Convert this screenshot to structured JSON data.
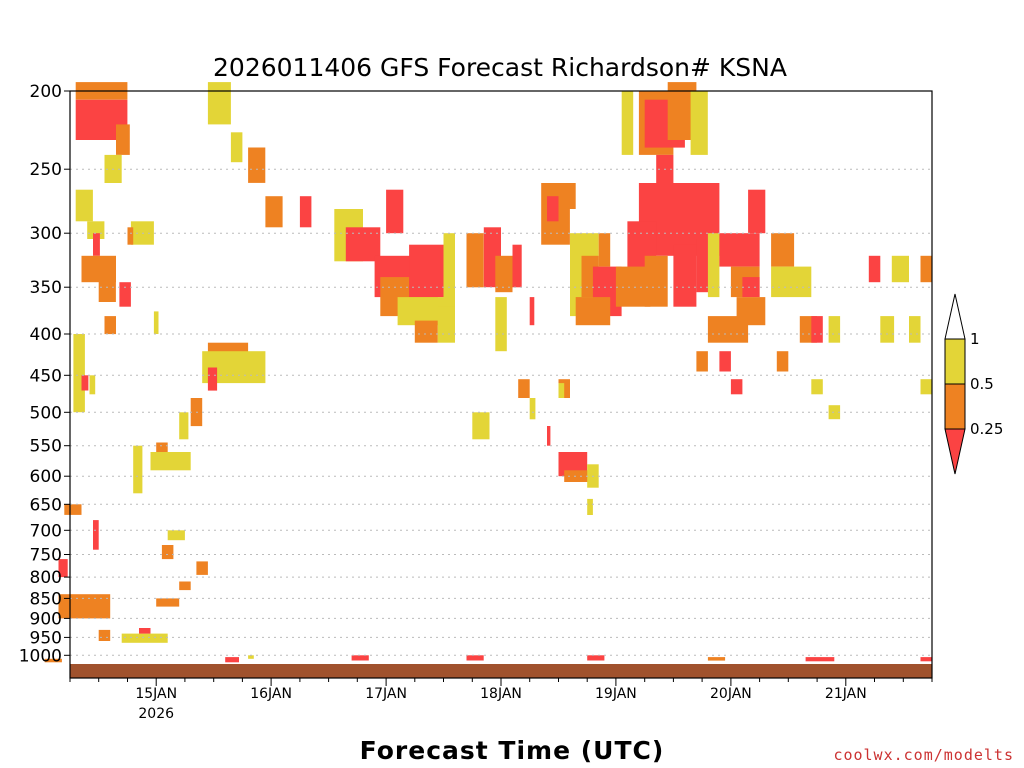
{
  "chart_data": {
    "type": "heatmap",
    "title": "2026011406 GFS Forecast Richardson# KSNA",
    "xlabel": "Forecast Time (UTC)",
    "ylabel": "",
    "x_ticks": [
      {
        "day": 1,
        "label": "15JAN",
        "sublabel": "2026"
      },
      {
        "day": 2,
        "label": "16JAN"
      },
      {
        "day": 3,
        "label": "17JAN"
      },
      {
        "day": 4,
        "label": "18JAN"
      },
      {
        "day": 5,
        "label": "19JAN"
      },
      {
        "day": 6,
        "label": "20JAN"
      },
      {
        "day": 7,
        "label": "21JAN"
      }
    ],
    "xlim_days": [
      0.25,
      7.75
    ],
    "y_ticks": [
      200,
      250,
      300,
      350,
      400,
      450,
      500,
      550,
      600,
      650,
      700,
      750,
      800,
      850,
      900,
      950,
      1000
    ],
    "ylim_hpa": [
      200,
      1025
    ],
    "legend": {
      "levels": [
        "1",
        "0.5",
        "0.25"
      ],
      "colors": {
        "gt1": "#ffffff",
        "lt1": "#e3d537",
        "lt05": "#ee8222",
        "lt025": "#fb4343"
      }
    },
    "colors": {
      "yellow": "#e3d537",
      "orange": "#ee8222",
      "red": "#fb4343",
      "ground": "#a0522d",
      "grid": "#bbbbbb"
    },
    "credit": "coolwx.com/modelts",
    "cells": [
      {
        "t": 0.3,
        "p": 205,
        "c": "red",
        "dt": 0.45,
        "dp": 25
      },
      {
        "t": 0.3,
        "p": 195,
        "c": "orange",
        "dt": 0.45,
        "dp": 10
      },
      {
        "t": 0.65,
        "p": 220,
        "c": "orange",
        "dt": 0.12,
        "dp": 20
      },
      {
        "t": 0.3,
        "p": 265,
        "c": "yellow",
        "dt": 0.15,
        "dp": 25
      },
      {
        "t": 0.55,
        "p": 240,
        "c": "yellow",
        "dt": 0.15,
        "dp": 20
      },
      {
        "t": 0.4,
        "p": 290,
        "c": "yellow",
        "dt": 0.15,
        "dp": 15
      },
      {
        "t": 0.45,
        "p": 300,
        "c": "red",
        "dt": 0.06,
        "dp": 20
      },
      {
        "t": 0.35,
        "p": 320,
        "c": "orange",
        "dt": 0.3,
        "dp": 25
      },
      {
        "t": 0.5,
        "p": 340,
        "c": "orange",
        "dt": 0.15,
        "dp": 25
      },
      {
        "t": 0.68,
        "p": 345,
        "c": "red",
        "dt": 0.1,
        "dp": 25
      },
      {
        "t": 0.55,
        "p": 380,
        "c": "orange",
        "dt": 0.1,
        "dp": 20
      },
      {
        "t": 0.78,
        "p": 290,
        "c": "yellow",
        "dt": 0.2,
        "dp": 20
      },
      {
        "t": 0.75,
        "p": 295,
        "c": "orange",
        "dt": 0.05,
        "dp": 15
      },
      {
        "t": 0.98,
        "p": 375,
        "c": "yellow",
        "dt": 0.04,
        "dp": 25
      },
      {
        "t": 0.28,
        "p": 400,
        "c": "yellow",
        "dt": 0.1,
        "dp": 100
      },
      {
        "t": 0.35,
        "p": 450,
        "c": "red",
        "dt": 0.06,
        "dp": 20
      },
      {
        "t": 0.42,
        "p": 450,
        "c": "yellow",
        "dt": 0.05,
        "dp": 25
      },
      {
        "t": 1.45,
        "p": 195,
        "c": "yellow",
        "dt": 0.2,
        "dp": 25
      },
      {
        "t": 1.65,
        "p": 225,
        "c": "yellow",
        "dt": 0.1,
        "dp": 20
      },
      {
        "t": 1.8,
        "p": 235,
        "c": "orange",
        "dt": 0.15,
        "dp": 25
      },
      {
        "t": 1.95,
        "p": 270,
        "c": "orange",
        "dt": 0.15,
        "dp": 25
      },
      {
        "t": 2.25,
        "p": 270,
        "c": "red",
        "dt": 0.1,
        "dp": 25
      },
      {
        "t": 1.45,
        "p": 410,
        "c": "orange",
        "dt": 0.35,
        "dp": 40
      },
      {
        "t": 1.4,
        "p": 420,
        "c": "yellow",
        "dt": 0.55,
        "dp": 40
      },
      {
        "t": 1.45,
        "p": 440,
        "c": "red",
        "dt": 0.08,
        "dp": 30
      },
      {
        "t": 1.3,
        "p": 480,
        "c": "orange",
        "dt": 0.1,
        "dp": 40
      },
      {
        "t": 1.2,
        "p": 500,
        "c": "yellow",
        "dt": 0.08,
        "dp": 40
      },
      {
        "t": 1.0,
        "p": 545,
        "c": "orange",
        "dt": 0.1,
        "dp": 25
      },
      {
        "t": 0.95,
        "p": 560,
        "c": "yellow",
        "dt": 0.35,
        "dp": 30
      },
      {
        "t": 0.8,
        "p": 550,
        "c": "yellow",
        "dt": 0.08,
        "dp": 80
      },
      {
        "t": 0.2,
        "p": 650,
        "c": "orange",
        "dt": 0.15,
        "dp": 20
      },
      {
        "t": 0.45,
        "p": 680,
        "c": "red",
        "dt": 0.05,
        "dp": 60
      },
      {
        "t": 0.15,
        "p": 760,
        "c": "red",
        "dt": 0.08,
        "dp": 40
      },
      {
        "t": 0.2,
        "p": 850,
        "c": "red",
        "dt": 0.35,
        "dp": 45
      },
      {
        "t": 0.15,
        "p": 840,
        "c": "orange",
        "dt": 0.45,
        "dp": 60
      },
      {
        "t": 0.5,
        "p": 930,
        "c": "orange",
        "dt": 0.1,
        "dp": 30
      },
      {
        "t": 0.7,
        "p": 940,
        "c": "yellow",
        "dt": 0.4,
        "dp": 25
      },
      {
        "t": 0.85,
        "p": 925,
        "c": "red",
        "dt": 0.1,
        "dp": 15
      },
      {
        "t": 1.0,
        "p": 850,
        "c": "orange",
        "dt": 0.2,
        "dp": 20
      },
      {
        "t": 1.2,
        "p": 810,
        "c": "orange",
        "dt": 0.1,
        "dp": 20
      },
      {
        "t": 1.05,
        "p": 730,
        "c": "orange",
        "dt": 0.1,
        "dp": 30
      },
      {
        "t": 1.1,
        "p": 700,
        "c": "yellow",
        "dt": 0.15,
        "dp": 20
      },
      {
        "t": 1.35,
        "p": 765,
        "c": "orange",
        "dt": 0.1,
        "dp": 30
      },
      {
        "t": 2.55,
        "p": 280,
        "c": "yellow",
        "dt": 0.25,
        "dp": 45
      },
      {
        "t": 2.65,
        "p": 295,
        "c": "red",
        "dt": 0.3,
        "dp": 30
      },
      {
        "t": 3.0,
        "p": 265,
        "c": "red",
        "dt": 0.15,
        "dp": 35
      },
      {
        "t": 2.9,
        "p": 320,
        "c": "red",
        "dt": 0.6,
        "dp": 40
      },
      {
        "t": 2.95,
        "p": 340,
        "c": "orange",
        "dt": 0.5,
        "dp": 40
      },
      {
        "t": 3.2,
        "p": 310,
        "c": "red",
        "dt": 0.35,
        "dp": 50
      },
      {
        "t": 3.1,
        "p": 360,
        "c": "yellow",
        "dt": 0.45,
        "dp": 30
      },
      {
        "t": 3.5,
        "p": 300,
        "c": "yellow",
        "dt": 0.1,
        "dp": 80
      },
      {
        "t": 3.25,
        "p": 385,
        "c": "orange",
        "dt": 0.2,
        "dp": 25
      },
      {
        "t": 3.45,
        "p": 370,
        "c": "yellow",
        "dt": 0.15,
        "dp": 40
      },
      {
        "t": 3.7,
        "p": 300,
        "c": "orange",
        "dt": 0.15,
        "dp": 50
      },
      {
        "t": 3.85,
        "p": 295,
        "c": "red",
        "dt": 0.15,
        "dp": 55
      },
      {
        "t": 3.95,
        "p": 320,
        "c": "orange",
        "dt": 0.15,
        "dp": 35
      },
      {
        "t": 4.1,
        "p": 310,
        "c": "red",
        "dt": 0.08,
        "dp": 40
      },
      {
        "t": 3.95,
        "p": 360,
        "c": "yellow",
        "dt": 0.1,
        "dp": 60
      },
      {
        "t": 4.25,
        "p": 360,
        "c": "red",
        "dt": 0.04,
        "dp": 30
      },
      {
        "t": 4.35,
        "p": 260,
        "c": "orange",
        "dt": 0.25,
        "dp": 50
      },
      {
        "t": 4.4,
        "p": 270,
        "c": "red",
        "dt": 0.1,
        "dp": 20
      },
      {
        "t": 4.55,
        "p": 260,
        "c": "orange",
        "dt": 0.1,
        "dp": 20
      },
      {
        "t": 4.6,
        "p": 300,
        "c": "yellow",
        "dt": 0.25,
        "dp": 80
      },
      {
        "t": 4.7,
        "p": 320,
        "c": "orange",
        "dt": 0.15,
        "dp": 40
      },
      {
        "t": 4.8,
        "p": 330,
        "c": "red",
        "dt": 0.25,
        "dp": 50
      },
      {
        "t": 4.85,
        "p": 300,
        "c": "orange",
        "dt": 0.1,
        "dp": 30
      },
      {
        "t": 4.65,
        "p": 360,
        "c": "orange",
        "dt": 0.3,
        "dp": 30
      },
      {
        "t": 5.05,
        "p": 200,
        "c": "yellow",
        "dt": 0.1,
        "dp": 40
      },
      {
        "t": 5.2,
        "p": 200,
        "c": "orange",
        "dt": 0.3,
        "dp": 40
      },
      {
        "t": 5.25,
        "p": 205,
        "c": "red",
        "dt": 0.35,
        "dp": 30
      },
      {
        "t": 5.45,
        "p": 195,
        "c": "orange",
        "dt": 0.25,
        "dp": 35
      },
      {
        "t": 5.65,
        "p": 200,
        "c": "yellow",
        "dt": 0.15,
        "dp": 40
      },
      {
        "t": 5.35,
        "p": 240,
        "c": "red",
        "dt": 0.15,
        "dp": 40
      },
      {
        "t": 5.2,
        "p": 260,
        "c": "red",
        "dt": 0.7,
        "dp": 60
      },
      {
        "t": 5.1,
        "p": 290,
        "c": "red",
        "dt": 0.25,
        "dp": 60
      },
      {
        "t": 5.0,
        "p": 330,
        "c": "orange",
        "dt": 0.3,
        "dp": 40
      },
      {
        "t": 5.25,
        "p": 320,
        "c": "orange",
        "dt": 0.2,
        "dp": 50
      },
      {
        "t": 5.5,
        "p": 310,
        "c": "red",
        "dt": 0.2,
        "dp": 60
      },
      {
        "t": 5.7,
        "p": 305,
        "c": "red",
        "dt": 0.15,
        "dp": 50
      },
      {
        "t": 5.8,
        "p": 300,
        "c": "yellow",
        "dt": 0.1,
        "dp": 60
      },
      {
        "t": 5.9,
        "p": 300,
        "c": "red",
        "dt": 0.35,
        "dp": 30
      },
      {
        "t": 6.0,
        "p": 330,
        "c": "orange",
        "dt": 0.25,
        "dp": 30
      },
      {
        "t": 6.1,
        "p": 340,
        "c": "red",
        "dt": 0.15,
        "dp": 20
      },
      {
        "t": 6.15,
        "p": 265,
        "c": "red",
        "dt": 0.15,
        "dp": 35
      },
      {
        "t": 6.35,
        "p": 300,
        "c": "orange",
        "dt": 0.2,
        "dp": 30
      },
      {
        "t": 6.35,
        "p": 330,
        "c": "yellow",
        "dt": 0.35,
        "dp": 30
      },
      {
        "t": 6.05,
        "p": 360,
        "c": "orange",
        "dt": 0.25,
        "dp": 30
      },
      {
        "t": 5.8,
        "p": 380,
        "c": "orange",
        "dt": 0.35,
        "dp": 30
      },
      {
        "t": 6.6,
        "p": 380,
        "c": "orange",
        "dt": 0.15,
        "dp": 30
      },
      {
        "t": 6.7,
        "p": 380,
        "c": "red",
        "dt": 0.1,
        "dp": 30
      },
      {
        "t": 6.85,
        "p": 380,
        "c": "yellow",
        "dt": 0.1,
        "dp": 30
      },
      {
        "t": 7.2,
        "p": 320,
        "c": "red",
        "dt": 0.1,
        "dp": 25
      },
      {
        "t": 7.4,
        "p": 320,
        "c": "yellow",
        "dt": 0.15,
        "dp": 25
      },
      {
        "t": 7.65,
        "p": 320,
        "c": "orange",
        "dt": 0.1,
        "dp": 25
      },
      {
        "t": 7.3,
        "p": 380,
        "c": "yellow",
        "dt": 0.12,
        "dp": 30
      },
      {
        "t": 7.55,
        "p": 380,
        "c": "yellow",
        "dt": 0.1,
        "dp": 30
      },
      {
        "t": 5.7,
        "p": 420,
        "c": "orange",
        "dt": 0.1,
        "dp": 25
      },
      {
        "t": 5.9,
        "p": 420,
        "c": "red",
        "dt": 0.1,
        "dp": 25
      },
      {
        "t": 6.0,
        "p": 455,
        "c": "red",
        "dt": 0.1,
        "dp": 20
      },
      {
        "t": 6.4,
        "p": 420,
        "c": "orange",
        "dt": 0.1,
        "dp": 25
      },
      {
        "t": 6.7,
        "p": 455,
        "c": "yellow",
        "dt": 0.1,
        "dp": 20
      },
      {
        "t": 6.85,
        "p": 490,
        "c": "yellow",
        "dt": 0.1,
        "dp": 20
      },
      {
        "t": 7.65,
        "p": 455,
        "c": "yellow",
        "dt": 0.1,
        "dp": 20
      },
      {
        "t": 4.15,
        "p": 455,
        "c": "orange",
        "dt": 0.1,
        "dp": 25
      },
      {
        "t": 4.5,
        "p": 455,
        "c": "orange",
        "dt": 0.1,
        "dp": 25
      },
      {
        "t": 4.4,
        "p": 520,
        "c": "red",
        "dt": 0.03,
        "dp": 30
      },
      {
        "t": 4.5,
        "p": 560,
        "c": "red",
        "dt": 0.25,
        "dp": 40
      },
      {
        "t": 4.55,
        "p": 590,
        "c": "orange",
        "dt": 0.25,
        "dp": 20
      },
      {
        "t": 4.75,
        "p": 580,
        "c": "yellow",
        "dt": 0.1,
        "dp": 40
      },
      {
        "t": 3.75,
        "p": 500,
        "c": "yellow",
        "dt": 0.15,
        "dp": 40
      },
      {
        "t": 4.5,
        "p": 460,
        "c": "yellow",
        "dt": 0.05,
        "dp": 20
      },
      {
        "t": 4.25,
        "p": 480,
        "c": "yellow",
        "dt": 0.05,
        "dp": 30
      },
      {
        "t": 4.75,
        "p": 640,
        "c": "yellow",
        "dt": 0.05,
        "dp": 30
      },
      {
        "t": 0.03,
        "p": 1010,
        "c": "orange",
        "dt": 0.15,
        "dp": 10
      },
      {
        "t": 1.6,
        "p": 1005,
        "c": "red",
        "dt": 0.12,
        "dp": 15
      },
      {
        "t": 2.7,
        "p": 1000,
        "c": "red",
        "dt": 0.15,
        "dp": 15
      },
      {
        "t": 3.7,
        "p": 1000,
        "c": "red",
        "dt": 0.15,
        "dp": 15
      },
      {
        "t": 4.75,
        "p": 1000,
        "c": "red",
        "dt": 0.15,
        "dp": 15
      },
      {
        "t": 5.8,
        "p": 1005,
        "c": "orange",
        "dt": 0.15,
        "dp": 10
      },
      {
        "t": 6.65,
        "p": 1005,
        "c": "red",
        "dt": 0.25,
        "dp": 12
      },
      {
        "t": 7.65,
        "p": 1005,
        "c": "red",
        "dt": 0.1,
        "dp": 12
      },
      {
        "t": 1.8,
        "p": 1000,
        "c": "yellow",
        "dt": 0.05,
        "dp": 10
      }
    ]
  }
}
